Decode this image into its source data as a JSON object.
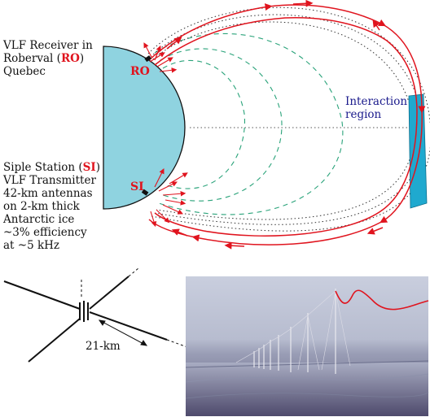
{
  "receiver": {
    "line1": "VLF Receiver in",
    "line2_prefix": "Roberval (",
    "line2_code": "RO",
    "line2_suffix": ")",
    "line3": "Quebec"
  },
  "transmitter": {
    "line1_prefix": "Siple Station (",
    "line1_code": "SI",
    "line1_suffix": ")",
    "line2": "VLF Transmitter",
    "line3": "42-km antennas",
    "line4": "on 2-km thick",
    "line5": "Antarctic ice",
    "line6": "~3% efficiency",
    "line7": "at ~5 kHz"
  },
  "diagram": {
    "ro_label": "RO",
    "si_label": "SI",
    "interaction_line1": "Interaction",
    "interaction_line2": "region",
    "antenna_length": "21-km"
  },
  "colors": {
    "earth": "#8fd3e0",
    "interaction_region": "#1fa9cf",
    "wave_path": "#e0141e",
    "field_line_dashed": "#2aa37a",
    "field_line_dotted": "#333333",
    "interaction_text": "#1a1a8c"
  }
}
